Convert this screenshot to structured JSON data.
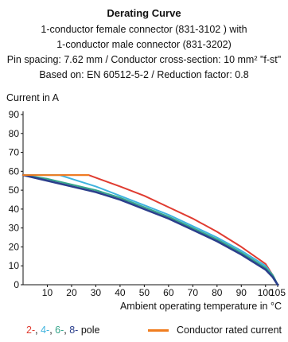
{
  "header": {
    "title": "Derating Curve",
    "line1": "1-conductor female connector (831-3102 ) with",
    "line2": "1-conductor male connector (831-3202)",
    "line3": "Pin spacing: 7.62 mm / Conductor cross-section: 10 mm² \"f-st\"",
    "line4": "Based on: EN 60512-5-2 / Reduction factor: 0.8"
  },
  "legend": {
    "poles": [
      {
        "text": "2-",
        "color": "#e03c31"
      },
      {
        "text": ", ",
        "color": "#111111"
      },
      {
        "text": "4-",
        "color": "#3fb3de"
      },
      {
        "text": ", ",
        "color": "#111111"
      },
      {
        "text": "6-",
        "color": "#35a58a"
      },
      {
        "text": ", ",
        "color": "#111111"
      },
      {
        "text": "8-",
        "color": "#2b3f8c"
      },
      {
        "text": " pole",
        "color": "#111111"
      }
    ],
    "rated_label": "Conductor rated current",
    "rated_color": "#f07d1f"
  },
  "chart_data": {
    "type": "line",
    "ylabel": "Current in A",
    "xlabel": "Ambient operating temperature in °C",
    "xlim": [
      0,
      105
    ],
    "ylim": [
      0,
      90
    ],
    "x_ticks": [
      10,
      20,
      30,
      40,
      50,
      60,
      70,
      80,
      90,
      100,
      105
    ],
    "y_ticks": [
      0,
      10,
      20,
      30,
      40,
      50,
      60,
      70,
      80,
      90
    ],
    "grid": false,
    "series": [
      {
        "name": "Conductor rated current",
        "color": "#f07d1f",
        "x": [
          0,
          27
        ],
        "y": [
          58,
          58
        ]
      },
      {
        "name": "2-",
        "color": "#e03c31",
        "x": [
          0,
          27,
          40,
          50,
          60,
          70,
          80,
          90,
          100,
          103,
          105
        ],
        "y": [
          58,
          58,
          52,
          47,
          41,
          35,
          28,
          20,
          11,
          5,
          0
        ]
      },
      {
        "name": "4-",
        "color": "#3fb3de",
        "x": [
          0,
          15,
          30,
          40,
          50,
          60,
          70,
          80,
          90,
          100,
          103,
          105
        ],
        "y": [
          58,
          58,
          52,
          47,
          42,
          37,
          31,
          25,
          18,
          10,
          5,
          0
        ]
      },
      {
        "name": "6-",
        "color": "#35a58a",
        "x": [
          0,
          10,
          20,
          30,
          40,
          50,
          60,
          70,
          80,
          90,
          100,
          103,
          105
        ],
        "y": [
          58,
          56,
          53,
          50,
          46,
          41,
          36,
          30,
          24,
          17,
          9,
          5,
          0
        ]
      },
      {
        "name": "8-",
        "color": "#2b3f8c",
        "x": [
          0,
          10,
          20,
          30,
          40,
          50,
          60,
          70,
          80,
          90,
          100,
          103,
          105
        ],
        "y": [
          58,
          55,
          52,
          49,
          45,
          40,
          35,
          29,
          23,
          16,
          8,
          4,
          0
        ]
      }
    ]
  }
}
